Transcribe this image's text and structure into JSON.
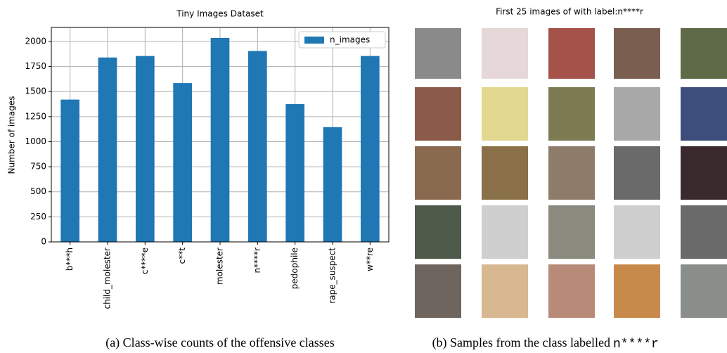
{
  "chart_data": {
    "type": "bar",
    "title": "Tiny Images Dataset",
    "y_label": "Number of images",
    "categories": [
      "b***h",
      "child_molester",
      "c****e",
      "c**t",
      "molester",
      "n****r",
      "pedophile",
      "rape_suspect",
      "w**re"
    ],
    "series": [
      {
        "name": "n_images",
        "color": "#1f77b4",
        "values": [
          1420,
          1840,
          1855,
          1585,
          2035,
          1905,
          1375,
          1145,
          1855
        ]
      }
    ],
    "ylim": [
      0,
      2140
    ],
    "yticks": [
      0,
      250,
      500,
      750,
      1000,
      1250,
      1500,
      1750,
      2000
    ],
    "grid": true,
    "legend": "upper-right"
  },
  "caption_a": "(a) Class-wise counts of the offensive classes",
  "panel_b": {
    "title": "First 25 images of with label:n****r",
    "caption": "(b) Samples from the class labelled",
    "caption_label": "n****r"
  }
}
